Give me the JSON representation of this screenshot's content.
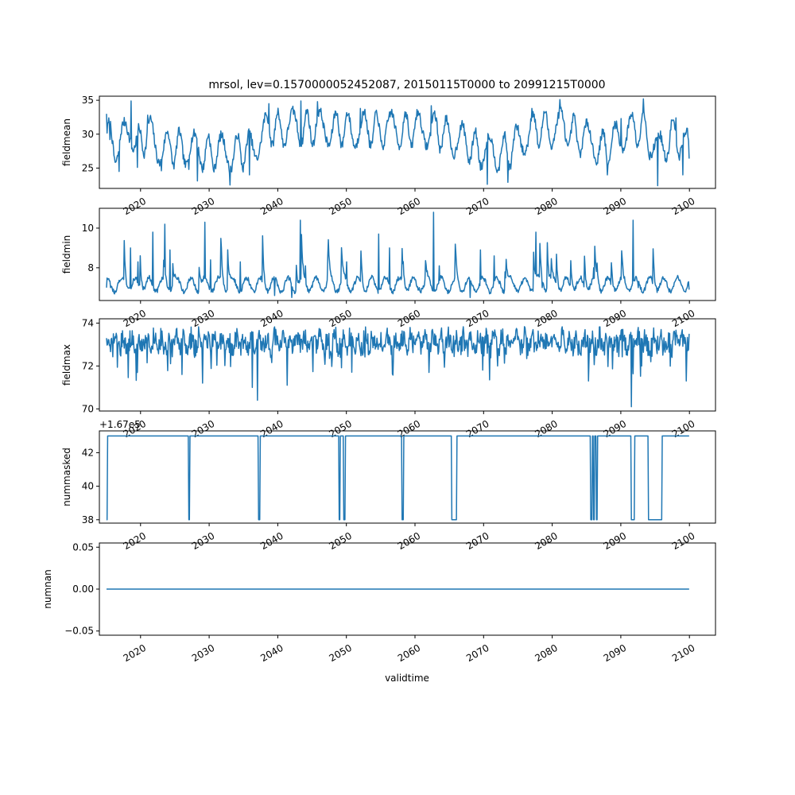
{
  "chart_data": {
    "type": "line",
    "title": "mrsol, lev=0.1570000052452087, 20150115T0000 to 20991215T0000",
    "xlabel": "validtime",
    "x_tick_labels": [
      "2020",
      "2030",
      "2040",
      "2050",
      "2060",
      "2070",
      "2080",
      "2090",
      "2100"
    ],
    "xlim": [
      2014.0,
      2103.8
    ],
    "x_start": 2015.04,
    "x_end": 2099.96,
    "colors": {
      "line": "#1f77b4"
    },
    "grid": false,
    "panels": [
      {
        "ylabel": "fieldmean",
        "ylim": [
          22.0,
          35.6
        ],
        "y_ticks": [
          25,
          30,
          35
        ],
        "y_tick_labels": [
          "25",
          "30",
          "35"
        ],
        "offset_label": "",
        "mode": "osc",
        "seed": 7,
        "base": 29.3,
        "amp": 3.6,
        "noise": 1.0,
        "vmin": 22.4,
        "vmax": 35.2,
        "series": [
          {
            "name": "",
            "points": [
              [
                2015.04,
                33.0
              ],
              [
                2015.5,
                29.2
              ],
              [
                2016.2,
                26.5
              ],
              [
                2016.9,
                24.5
              ],
              [
                2017.9,
                31.8
              ],
              [
                2018.6,
                34.9
              ],
              [
                2019.5,
                25.1
              ],
              [
                2021.0,
                32.8
              ],
              [
                2023.0,
                24.6
              ],
              [
                2027.0,
                24.8
              ],
              [
                2028.3,
                23.1
              ],
              [
                2033.0,
                22.5
              ],
              [
                2035.9,
                24.0
              ],
              [
                2038.7,
                34.5
              ],
              [
                2043.4,
                34.9
              ],
              [
                2045.8,
                34.8
              ],
              [
                2052.0,
                33.8
              ],
              [
                2062.4,
                34.2
              ],
              [
                2070.5,
                22.6
              ],
              [
                2073.5,
                22.9
              ],
              [
                2077.0,
                33.8
              ],
              [
                2081.1,
                35.1
              ],
              [
                2088.0,
                24.0
              ],
              [
                2090.0,
                32.3
              ],
              [
                2093.3,
                35.2
              ],
              [
                2095.4,
                22.4
              ],
              [
                2098.0,
                32.4
              ],
              [
                2099.0,
                24.0
              ],
              [
                2099.96,
                26.4
              ]
            ]
          }
        ]
      },
      {
        "ylabel": "fieldmin",
        "ylim": [
          6.35,
          11.0
        ],
        "y_ticks": [
          8,
          10
        ],
        "y_tick_labels": [
          "8",
          "10"
        ],
        "offset_label": "",
        "mode": "spiky",
        "seed": 13,
        "base": 7.15,
        "amp": 0.35,
        "noise": 0.12,
        "vmin": 6.5,
        "vmax": 10.8,
        "series": [
          {
            "name": "",
            "points": [
              [
                2015.04,
                7.0
              ],
              [
                2015.6,
                7.0
              ],
              [
                2018.5,
                9.0
              ],
              [
                2019.6,
                8.3
              ],
              [
                2021.8,
                9.8
              ],
              [
                2023.5,
                10.2
              ],
              [
                2024.3,
                8.9
              ],
              [
                2029.4,
                10.3
              ],
              [
                2030.2,
                8.4
              ],
              [
                2034.5,
                8.3
              ],
              [
                2039.5,
                6.6
              ],
              [
                2042.0,
                6.5
              ],
              [
                2043.3,
                10.4
              ],
              [
                2044.0,
                8.1
              ],
              [
                2047.3,
                8.6
              ],
              [
                2050.0,
                8.3
              ],
              [
                2054.7,
                9.7
              ],
              [
                2056.3,
                9.0
              ],
              [
                2060.6,
                7.0
              ],
              [
                2062.7,
                10.8
              ],
              [
                2063.5,
                8.1
              ],
              [
                2068.0,
                6.5
              ],
              [
                2069.5,
                8.9
              ],
              [
                2071.5,
                8.6
              ],
              [
                2077.6,
                9.8
              ],
              [
                2078.5,
                7.0
              ],
              [
                2086.0,
                8.0
              ],
              [
                2091.8,
                10.4
              ],
              [
                2092.5,
                7.0
              ],
              [
                2099.96,
                6.9
              ]
            ]
          }
        ]
      },
      {
        "ylabel": "fieldmax",
        "ylim": [
          69.9,
          74.2
        ],
        "y_ticks": [
          70,
          72,
          74
        ],
        "y_tick_labels": [
          "70",
          "72",
          "74"
        ],
        "offset_label": "",
        "mode": "dense",
        "seed": 21,
        "base": 73.1,
        "amp": 0.25,
        "noise": 0.5,
        "vmin": 70.1,
        "vmax": 74.0,
        "series": [
          {
            "name": "",
            "points": [
              [
                2015.04,
                73.3
              ],
              [
                2016.0,
                73.5
              ],
              [
                2019.5,
                71.7
              ],
              [
                2026.0,
                71.6
              ],
              [
                2029.0,
                71.2
              ],
              [
                2036.3,
                71.0
              ],
              [
                2037.0,
                70.4
              ],
              [
                2045.0,
                72.8
              ],
              [
                2062.0,
                71.7
              ],
              [
                2072.0,
                72.0
              ],
              [
                2085.3,
                71.3
              ],
              [
                2090.1,
                73.7
              ],
              [
                2091.5,
                70.1
              ],
              [
                2093.0,
                72.0
              ],
              [
                2099.5,
                71.3
              ],
              [
                2099.96,
                73.5
              ]
            ]
          }
        ]
      },
      {
        "ylabel": "nummasked",
        "ylim": [
          37.8,
          43.3
        ],
        "y_ticks": [
          38,
          40,
          42
        ],
        "y_tick_labels": [
          "38",
          "40",
          "42"
        ],
        "offset_label": "+1.67e5",
        "mode": "step",
        "high": 43,
        "low": 38,
        "series": [
          {
            "name": "",
            "dips": [
              [
                2015.04,
                2015.2
              ],
              [
                2027.0,
                2027.2
              ],
              [
                2037.2,
                2037.4
              ],
              [
                2048.9,
                2049.1
              ],
              [
                2049.6,
                2049.8
              ],
              [
                2058.1,
                2058.3
              ],
              [
                2065.3,
                2066.1
              ],
              [
                2085.6,
                2085.8
              ],
              [
                2086.0,
                2086.2
              ],
              [
                2086.4,
                2086.6
              ],
              [
                2091.5,
                2092.0
              ],
              [
                2094.0,
                2096.0
              ]
            ]
          }
        ]
      },
      {
        "ylabel": "numnan",
        "ylim": [
          -0.055,
          0.055
        ],
        "y_ticks": [
          -0.05,
          0.0,
          0.05
        ],
        "y_tick_labels": [
          "−0.05",
          "0.00",
          "0.05"
        ],
        "offset_label": "",
        "mode": "flat",
        "value": 0.0,
        "series": [
          {
            "name": "",
            "points": [
              [
                2015.04,
                0.0
              ],
              [
                2099.96,
                0.0
              ]
            ]
          }
        ]
      }
    ]
  }
}
